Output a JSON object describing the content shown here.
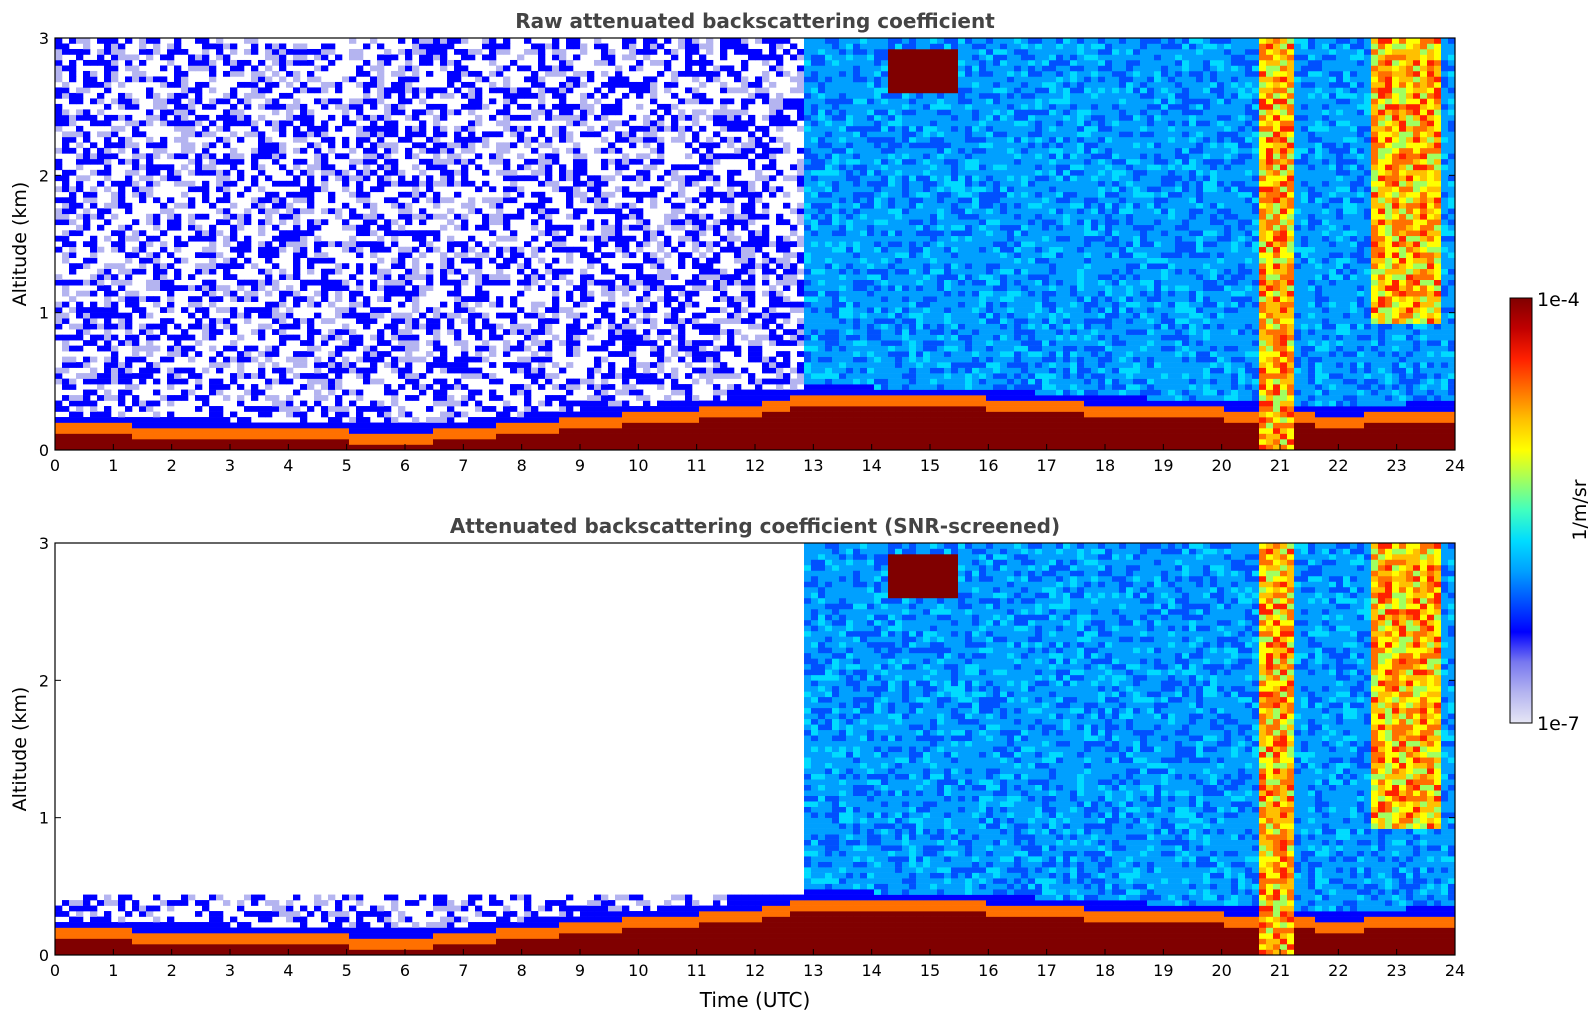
{
  "chart_data": [
    {
      "type": "heatmap",
      "title": "Raw attenuated backscattering coefficient",
      "xlabel": "",
      "ylabel": "Altitude (km)",
      "xlim": [
        0,
        24
      ],
      "ylim": [
        0,
        3
      ],
      "x_ticks": [
        "0",
        "1",
        "2",
        "3",
        "4",
        "5",
        "6",
        "7",
        "8",
        "9",
        "10",
        "11",
        "12",
        "13",
        "14",
        "15",
        "16",
        "17",
        "18",
        "19",
        "20",
        "21",
        "22",
        "23",
        "24"
      ],
      "y_ticks": [
        "0",
        "1",
        "2",
        "3"
      ],
      "boundary_layer_top_km": {
        "times": [
          0,
          2,
          4,
          6,
          7,
          8,
          9,
          10,
          11,
          12,
          12.8,
          13,
          14,
          16,
          18,
          20,
          22,
          24
        ],
        "values": [
          0.2,
          0.17,
          0.15,
          0.13,
          0.15,
          0.2,
          0.23,
          0.27,
          0.3,
          0.33,
          0.4,
          0.42,
          0.4,
          0.38,
          0.33,
          0.3,
          0.25,
          0.3
        ]
      },
      "clouds": [
        {
          "t_start": 14.3,
          "t_end": 15.5,
          "alt_bottom": 2.6,
          "alt_top": 2.9,
          "intensity": "very high"
        },
        {
          "t_start": 20.7,
          "t_end": 21.2,
          "alt_bottom": 0.0,
          "alt_top": 3.0,
          "intensity": "high"
        },
        {
          "t_start": 22.6,
          "t_end": 23.8,
          "alt_bottom": 0.9,
          "alt_top": 3.0,
          "intensity": "high"
        }
      ],
      "screened": false
    },
    {
      "type": "heatmap",
      "title": "Attenuated backscattering coefficient (SNR-screened)",
      "xlabel": "Time (UTC)",
      "ylabel": "Altitude (km)",
      "xlim": [
        0,
        24
      ],
      "ylim": [
        0,
        3
      ],
      "x_ticks": [
        "0",
        "1",
        "2",
        "3",
        "4",
        "5",
        "6",
        "7",
        "8",
        "9",
        "10",
        "11",
        "12",
        "13",
        "14",
        "15",
        "16",
        "17",
        "18",
        "19",
        "20",
        "21",
        "22",
        "23",
        "24"
      ],
      "y_ticks": [
        "0",
        "1",
        "2",
        "3"
      ],
      "screened": true,
      "screened_out_region": {
        "t_start": 0,
        "t_end": 12.8,
        "above_km": 0.45
      }
    }
  ],
  "colorbar": {
    "label": "1/m/sr",
    "min_label": "1e-7",
    "max_label": "1e-4",
    "colors": [
      "#e6e6f5",
      "#b4b4f0",
      "#7878f0",
      "#0000ff",
      "#0050ff",
      "#00a0ff",
      "#00dcff",
      "#40ffc0",
      "#a0ff60",
      "#ffff00",
      "#ffc000",
      "#ff7000",
      "#ff2000",
      "#c00000",
      "#800000"
    ]
  }
}
